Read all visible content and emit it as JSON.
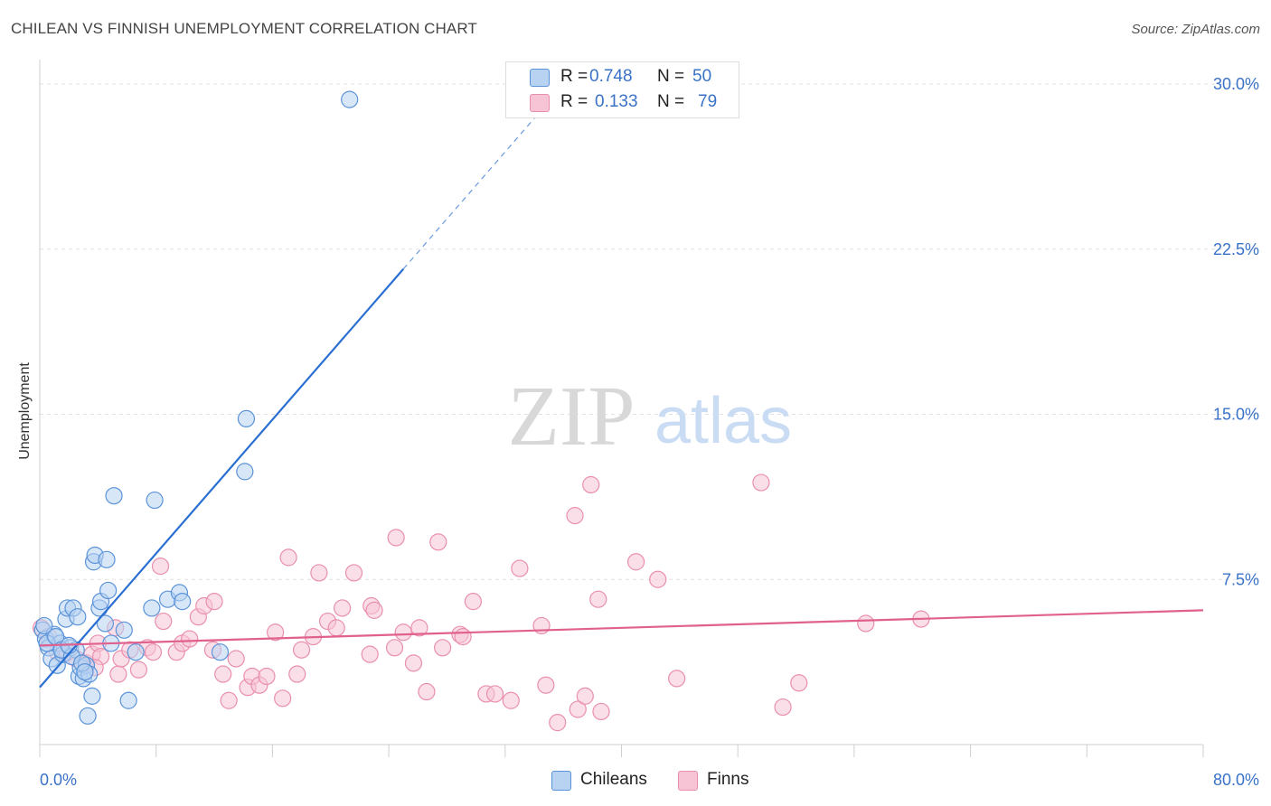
{
  "header": {
    "title": "CHILEAN VS FINNISH UNEMPLOYMENT CORRELATION CHART",
    "source": "Source: ZipAtlas.com"
  },
  "watermark": {
    "part1": "ZIP",
    "part2": "atlas"
  },
  "legend": {
    "r_label": "R =",
    "n_label": "N =",
    "chileans": {
      "r": "0.748",
      "n": "50"
    },
    "finns": {
      "r": "0.133",
      "n": "79"
    }
  },
  "colors": {
    "chileans_fill": "#b8d3f2",
    "chileans_stroke": "#5b93d8",
    "chileans_line": "#2a6fd1",
    "finns_fill": "#f7c4d5",
    "finns_stroke": "#e98fad",
    "finns_line": "#e0608e",
    "tick_label": "#3a72c8"
  },
  "chart_data": {
    "type": "scatter",
    "title": "CHILEAN VS FINNISH UNEMPLOYMENT CORRELATION CHART",
    "xlabel": "",
    "ylabel": "Unemployment",
    "xlim": [
      0,
      80
    ],
    "ylim": [
      0,
      30.7
    ],
    "x_tick_labels": [
      {
        "value": 0,
        "label": "0.0%"
      },
      {
        "value": 80,
        "label": "80.0%"
      }
    ],
    "y_ticks": [
      {
        "value": 7.5,
        "label": "7.5%"
      },
      {
        "value": 15,
        "label": "15.0%"
      },
      {
        "value": 22.5,
        "label": "22.5%"
      },
      {
        "value": 30,
        "label": "30.0%"
      }
    ],
    "grid": true,
    "legend_position": "bottom-center",
    "series": [
      {
        "name": "Chileans",
        "r": 0.748,
        "n": 50,
        "trend": {
          "x0": 0,
          "y0": 2.6,
          "x1": 25,
          "y1": 21.6,
          "dashed_to_x": 35,
          "dashed_to_y": 29.2
        },
        "points": [
          [
            0.2,
            5.2
          ],
          [
            0.4,
            4.8
          ],
          [
            0.6,
            4.4
          ],
          [
            0.8,
            3.9
          ],
          [
            1.0,
            5.0
          ],
          [
            1.2,
            3.6
          ],
          [
            1.4,
            4.6
          ],
          [
            1.6,
            4.1
          ],
          [
            1.8,
            5.7
          ],
          [
            1.9,
            6.2
          ],
          [
            2.1,
            4.4
          ],
          [
            2.3,
            6.2
          ],
          [
            2.5,
            4.3
          ],
          [
            2.6,
            5.8
          ],
          [
            2.7,
            3.1
          ],
          [
            2.8,
            3.5
          ],
          [
            3.0,
            3.0
          ],
          [
            3.2,
            3.6
          ],
          [
            3.3,
            1.3
          ],
          [
            3.4,
            3.2
          ],
          [
            3.6,
            2.2
          ],
          [
            3.7,
            8.3
          ],
          [
            3.8,
            8.6
          ],
          [
            4.1,
            6.2
          ],
          [
            4.2,
            6.5
          ],
          [
            4.5,
            5.5
          ],
          [
            4.6,
            8.4
          ],
          [
            4.7,
            7.0
          ],
          [
            4.9,
            4.6
          ],
          [
            5.1,
            11.3
          ],
          [
            5.8,
            5.2
          ],
          [
            6.1,
            2.0
          ],
          [
            6.6,
            4.2
          ],
          [
            7.7,
            6.2
          ],
          [
            7.9,
            11.1
          ],
          [
            8.8,
            6.6
          ],
          [
            9.6,
            6.9
          ],
          [
            9.8,
            6.5
          ],
          [
            12.4,
            4.2
          ],
          [
            14.1,
            12.4
          ],
          [
            14.2,
            14.8
          ],
          [
            21.3,
            29.3
          ],
          [
            0.5,
            4.6
          ],
          [
            1.1,
            4.9
          ],
          [
            1.5,
            4.3
          ],
          [
            2.2,
            4.0
          ],
          [
            2.9,
            3.7
          ],
          [
            0.3,
            5.4
          ],
          [
            2.0,
            4.5
          ],
          [
            3.1,
            3.3
          ]
        ]
      },
      {
        "name": "Finns",
        "r": 0.133,
        "n": 79,
        "trend": {
          "x0": 0,
          "y0": 4.5,
          "x1": 80,
          "y1": 6.1
        },
        "points": [
          [
            0.1,
            5.3
          ],
          [
            0.6,
            4.9
          ],
          [
            1.2,
            4.2
          ],
          [
            2.5,
            3.9
          ],
          [
            3.2,
            3.7
          ],
          [
            3.6,
            4.1
          ],
          [
            4.0,
            4.6
          ],
          [
            4.2,
            4.0
          ],
          [
            5.2,
            5.3
          ],
          [
            5.4,
            3.2
          ],
          [
            5.6,
            3.9
          ],
          [
            6.2,
            4.3
          ],
          [
            6.8,
            3.4
          ],
          [
            7.4,
            4.4
          ],
          [
            7.8,
            4.2
          ],
          [
            8.3,
            8.1
          ],
          [
            8.5,
            5.6
          ],
          [
            9.4,
            4.2
          ],
          [
            9.8,
            4.6
          ],
          [
            10.3,
            4.8
          ],
          [
            10.9,
            5.8
          ],
          [
            11.3,
            6.3
          ],
          [
            11.9,
            4.3
          ],
          [
            12.0,
            6.5
          ],
          [
            12.6,
            3.2
          ],
          [
            13.0,
            2.0
          ],
          [
            13.5,
            3.9
          ],
          [
            14.3,
            2.6
          ],
          [
            14.6,
            3.1
          ],
          [
            15.1,
            2.7
          ],
          [
            15.6,
            3.1
          ],
          [
            16.2,
            5.1
          ],
          [
            16.7,
            2.1
          ],
          [
            17.1,
            8.5
          ],
          [
            17.7,
            3.2
          ],
          [
            18.0,
            4.3
          ],
          [
            18.8,
            4.9
          ],
          [
            19.2,
            7.8
          ],
          [
            19.8,
            5.6
          ],
          [
            20.4,
            5.3
          ],
          [
            20.8,
            6.2
          ],
          [
            21.6,
            7.8
          ],
          [
            22.7,
            4.1
          ],
          [
            22.8,
            6.3
          ],
          [
            23.0,
            6.1
          ],
          [
            24.4,
            4.4
          ],
          [
            24.5,
            9.4
          ],
          [
            25.0,
            5.1
          ],
          [
            25.7,
            3.7
          ],
          [
            26.1,
            5.3
          ],
          [
            26.6,
            2.4
          ],
          [
            27.4,
            9.2
          ],
          [
            27.7,
            4.4
          ],
          [
            28.9,
            5.0
          ],
          [
            29.1,
            4.9
          ],
          [
            29.8,
            6.5
          ],
          [
            30.7,
            2.3
          ],
          [
            31.3,
            2.3
          ],
          [
            32.4,
            2.0
          ],
          [
            33.0,
            8.0
          ],
          [
            34.5,
            5.4
          ],
          [
            34.8,
            2.7
          ],
          [
            35.6,
            1.0
          ],
          [
            36.8,
            10.4
          ],
          [
            37.0,
            1.6
          ],
          [
            37.5,
            2.2
          ],
          [
            37.9,
            11.8
          ],
          [
            38.4,
            6.6
          ],
          [
            38.6,
            1.5
          ],
          [
            41.0,
            8.3
          ],
          [
            42.5,
            7.5
          ],
          [
            43.8,
            3.0
          ],
          [
            49.6,
            11.9
          ],
          [
            51.1,
            1.7
          ],
          [
            52.2,
            2.8
          ],
          [
            56.8,
            5.5
          ],
          [
            60.6,
            5.7
          ],
          [
            1.9,
            4.2
          ],
          [
            3.8,
            3.5
          ]
        ]
      }
    ]
  }
}
